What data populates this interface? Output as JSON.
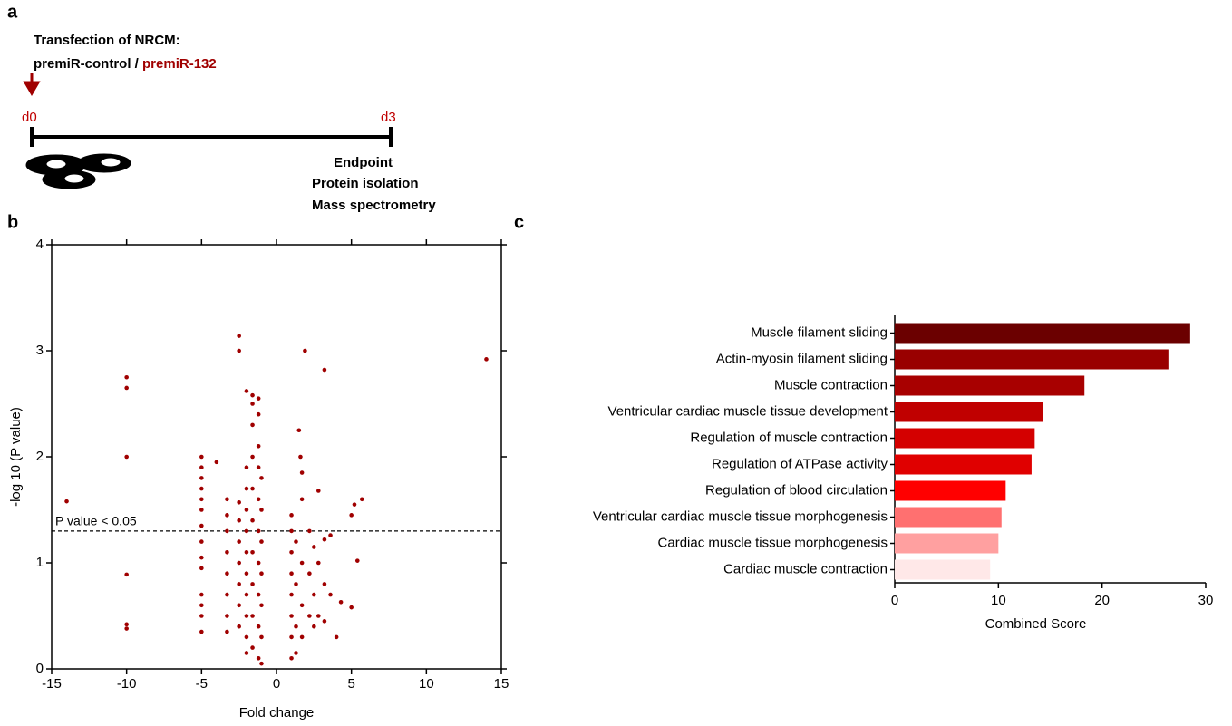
{
  "schematic": {
    "panel": "a",
    "heading": "Transfection of NRCM:",
    "control": "premiR-control / ",
    "treatment": "premiR-132",
    "start": "d0",
    "end": "d3",
    "steps": [
      "Endpoint",
      "Protein isolation",
      "Mass spectrometry"
    ]
  },
  "chart_data": [
    {
      "type": "scatter",
      "panel": "b",
      "xlabel": "Fold change",
      "ylabel": "-log 10 (P value)",
      "xlim": [
        -15,
        15
      ],
      "xticks": [
        -15,
        -10,
        -5,
        0,
        5,
        10,
        15
      ],
      "ylim": [
        0,
        4
      ],
      "yticks": [
        0,
        1,
        2,
        3,
        4
      ],
      "threshold": {
        "value": 1.3,
        "label": "P value < 0.05"
      },
      "series": [
        {
          "color": "#a00000",
          "x": [
            -14,
            -10,
            -10,
            -10,
            -10,
            -10,
            -10,
            -5,
            -5,
            -5,
            -5,
            -5,
            -5,
            -5,
            -5,
            -5,
            -5,
            -5,
            -5,
            -5,
            -5,
            -4,
            -3.3,
            -3.3,
            -3.3,
            -3.3,
            -3.3,
            -3.3,
            -3.3,
            -3.3,
            -2.5,
            -2.5,
            -2.5,
            -2.5,
            -2.5,
            -2.5,
            -2.5,
            -2.5,
            -2.5,
            -2,
            -2,
            -2,
            -2,
            -2,
            -2,
            -2,
            -2,
            -2,
            -2,
            -2,
            -1.6,
            -1.6,
            -1.6,
            -1.6,
            -1.6,
            -1.6,
            -1.6,
            -1.6,
            -1.6,
            -1.6,
            -1.2,
            -1.2,
            -1.2,
            -1.2,
            -1.2,
            -1.2,
            -1.2,
            -1.2,
            -1.2,
            -1.2,
            -1,
            -1,
            -1,
            -1,
            -1,
            -1,
            -1,
            1,
            1,
            1,
            1,
            1,
            1,
            1,
            1,
            1.3,
            1.3,
            1.3,
            1.3,
            1.7,
            1.7,
            1.7,
            1.7,
            1.7,
            1.9,
            1.5,
            1.6,
            2.2,
            2.2,
            2.2,
            2.5,
            2.5,
            2.5,
            2.8,
            2.8,
            2.8,
            3.2,
            3.2,
            3.2,
            3.2,
            3.6,
            3.6,
            4,
            4.3,
            5,
            5.2,
            5.4,
            5.7,
            5,
            14
          ],
          "values": [
            1.58,
            2.75,
            2.65,
            2.0,
            0.89,
            0.42,
            0.38,
            2.0,
            1.9,
            1.8,
            1.7,
            1.6,
            1.5,
            1.35,
            1.2,
            1.05,
            0.95,
            0.7,
            0.6,
            0.5,
            0.35,
            1.95,
            1.6,
            1.45,
            1.3,
            1.1,
            0.9,
            0.7,
            0.5,
            0.35,
            3.14,
            3.0,
            1.57,
            1.4,
            1.2,
            1.0,
            0.8,
            0.6,
            0.4,
            2.62,
            1.9,
            1.7,
            1.5,
            1.3,
            1.1,
            0.9,
            0.7,
            0.5,
            0.3,
            0.15,
            2.58,
            2.5,
            2.3,
            2.0,
            1.7,
            1.4,
            1.1,
            0.8,
            0.5,
            0.2,
            2.55,
            2.4,
            2.1,
            1.9,
            1.6,
            1.3,
            1.0,
            0.7,
            0.4,
            0.1,
            1.8,
            1.5,
            1.2,
            0.9,
            0.6,
            0.3,
            0.05,
            1.45,
            1.3,
            1.1,
            0.9,
            0.7,
            0.5,
            0.3,
            0.1,
            1.2,
            0.8,
            0.4,
            0.15,
            1.85,
            1.6,
            1.0,
            0.6,
            0.3,
            3.0,
            2.25,
            2.0,
            1.3,
            0.9,
            0.5,
            1.15,
            0.7,
            0.4,
            1.68,
            1.0,
            0.5,
            2.82,
            1.22,
            0.8,
            0.45,
            1.26,
            0.7,
            0.3,
            0.63,
            1.45,
            1.55,
            1.02,
            1.6,
            0.58,
            2.92
          ]
        }
      ]
    },
    {
      "type": "bar",
      "panel": "c",
      "orientation": "horizontal",
      "xlabel": "Combined Score",
      "xlim": [
        0,
        30
      ],
      "xticks": [
        0,
        10,
        20,
        30
      ],
      "categories": [
        "Muscle filament sliding",
        "Actin-myosin filament sliding",
        "Muscle contraction",
        "Ventricular cardiac muscle tissue development",
        "Regulation of muscle contraction",
        "Regulation of ATPase activity",
        "Regulation of blood circulation",
        "Ventricular cardiac muscle tissue morphogenesis",
        "Cardiac muscle tissue morphogenesis",
        "Cardiac muscle contraction"
      ],
      "values": [
        28.5,
        26.4,
        18.3,
        14.3,
        13.5,
        13.2,
        10.7,
        10.3,
        10.0,
        9.2
      ],
      "colors": [
        "#6b0000",
        "#990000",
        "#a80000",
        "#c00000",
        "#d40000",
        "#e00000",
        "#ff0000",
        "#ff7070",
        "#ffa0a0",
        "#ffe8e8"
      ]
    }
  ]
}
